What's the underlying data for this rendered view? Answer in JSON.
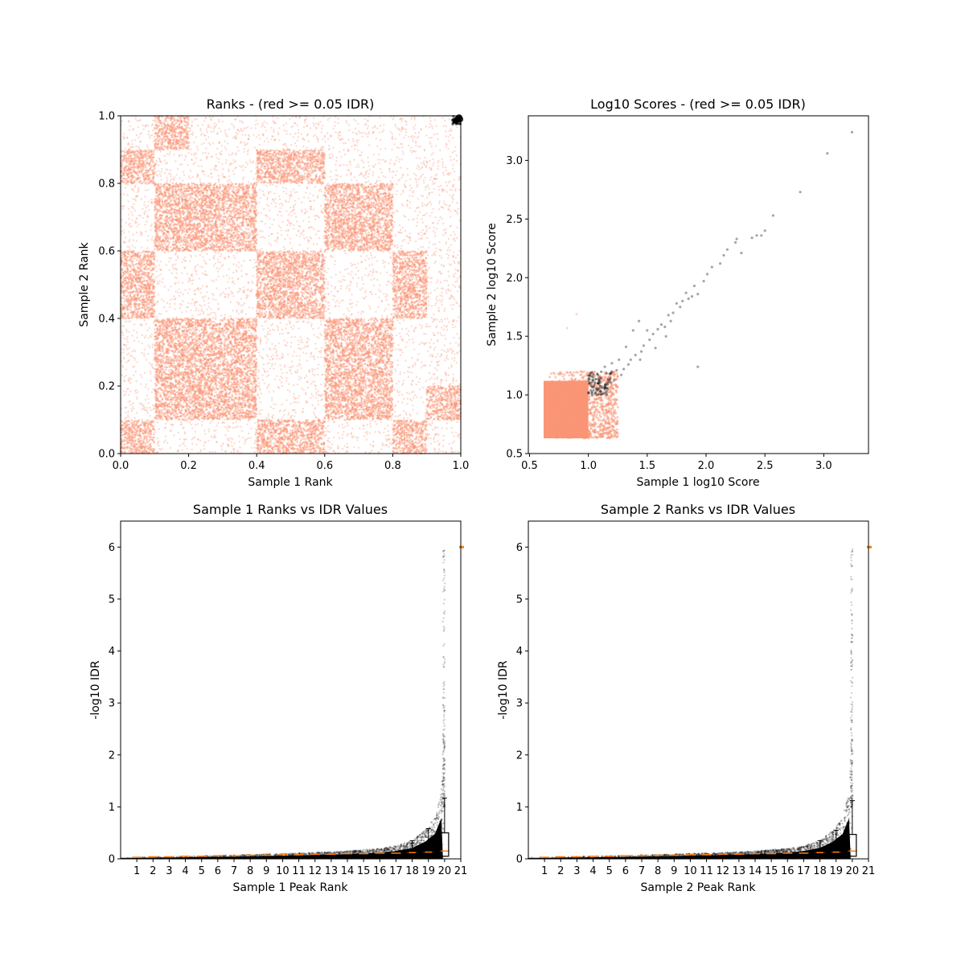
{
  "colors": {
    "red_points": "#fa9575",
    "black_points": "#000000",
    "median_line": "#ff7f0e",
    "axes": "#000000",
    "background": "#ffffff"
  },
  "chart_data": [
    {
      "id": "ranks",
      "type": "scatter",
      "title": "Ranks - (red >= 0.05 IDR)",
      "xlabel": "Sample 1 Rank",
      "ylabel": "Sample 2 Rank",
      "xlim": [
        0,
        1
      ],
      "ylim": [
        0,
        1
      ],
      "xticks": [
        "0.0",
        "0.2",
        "0.4",
        "0.6",
        "0.8",
        "1.0"
      ],
      "yticks": [
        "0.0",
        "0.2",
        "0.4",
        "0.6",
        "0.8",
        "1.0"
      ],
      "block_edges": [
        0,
        0.1,
        0.2,
        0.3,
        0.4,
        0.5,
        0.6,
        0.7,
        0.8,
        0.9,
        0.95,
        1.0
      ],
      "dense_blocks": [
        {
          "x": [
            0.0,
            0.1
          ],
          "y": [
            0.0,
            0.1
          ]
        },
        {
          "x": [
            0.1,
            0.4
          ],
          "y": [
            0.1,
            0.4
          ]
        },
        {
          "x": [
            0.4,
            0.6
          ],
          "y": [
            0.4,
            0.6
          ]
        },
        {
          "x": [
            0.0,
            0.1
          ],
          "y": [
            0.4,
            0.6
          ]
        },
        {
          "x": [
            0.4,
            0.6
          ],
          "y": [
            0.0,
            0.1
          ]
        },
        {
          "x": [
            0.6,
            0.8
          ],
          "y": [
            0.6,
            0.8
          ]
        },
        {
          "x": [
            0.1,
            0.4
          ],
          "y": [
            0.6,
            0.8
          ]
        },
        {
          "x": [
            0.6,
            0.8
          ],
          "y": [
            0.1,
            0.4
          ]
        },
        {
          "x": [
            0.8,
            0.9
          ],
          "y": [
            0.4,
            0.6
          ]
        },
        {
          "x": [
            0.4,
            0.6
          ],
          "y": [
            0.8,
            0.9
          ]
        },
        {
          "x": [
            0.0,
            0.1
          ],
          "y": [
            0.8,
            0.9
          ]
        },
        {
          "x": [
            0.8,
            0.9
          ],
          "y": [
            0.0,
            0.1
          ]
        },
        {
          "x": [
            0.1,
            0.2
          ],
          "y": [
            0.9,
            1.0
          ]
        },
        {
          "x": [
            0.9,
            1.0
          ],
          "y": [
            0.1,
            0.2
          ]
        }
      ],
      "series": [
        {
          "name": "red >= 0.05 IDR",
          "color": "#fa9575",
          "density": "uniform with block structure"
        },
        {
          "name": "below 0.05 IDR",
          "color": "#000000",
          "points": [
            [
              0.985,
              0.985
            ],
            [
              0.99,
              0.99
            ],
            [
              0.995,
              0.995
            ],
            [
              0.998,
              0.99
            ]
          ]
        }
      ]
    },
    {
      "id": "log10scores",
      "type": "scatter",
      "title": "Log10 Scores - (red >= 0.05 IDR)",
      "xlabel": "Sample 1 log10 Score",
      "ylabel": "Sample 2 log10 Score",
      "xlim": [
        0.49,
        3.38
      ],
      "ylim": [
        0.5,
        3.38
      ],
      "xticks": [
        "0.5",
        "1.0",
        "1.5",
        "2.0",
        "2.5",
        "3.0"
      ],
      "yticks": [
        "0.5",
        "1.0",
        "1.5",
        "2.0",
        "2.5",
        "3.0"
      ],
      "red_cluster": {
        "x": [
          0.62,
          1.25
        ],
        "y": [
          0.63,
          1.2
        ]
      },
      "black_points": [
        [
          3.24,
          3.24
        ],
        [
          3.03,
          3.06
        ],
        [
          2.8,
          2.73
        ],
        [
          2.57,
          2.53
        ],
        [
          2.5,
          2.4
        ],
        [
          2.47,
          2.36
        ],
        [
          2.43,
          2.36
        ],
        [
          2.39,
          2.34
        ],
        [
          2.26,
          2.33
        ],
        [
          2.25,
          2.3
        ],
        [
          2.3,
          2.21
        ],
        [
          2.18,
          2.24
        ],
        [
          2.15,
          2.19
        ],
        [
          2.12,
          2.12
        ],
        [
          2.05,
          2.09
        ],
        [
          2.01,
          2.03
        ],
        [
          1.98,
          1.97
        ],
        [
          1.93,
          1.86
        ],
        [
          1.9,
          1.93
        ],
        [
          1.88,
          1.84
        ],
        [
          1.85,
          1.82
        ],
        [
          1.83,
          1.87
        ],
        [
          1.8,
          1.8
        ],
        [
          1.78,
          1.75
        ],
        [
          1.75,
          1.78
        ],
        [
          1.72,
          1.7
        ],
        [
          1.7,
          1.63
        ],
        [
          1.68,
          1.68
        ],
        [
          1.65,
          1.58
        ],
        [
          1.62,
          1.6
        ],
        [
          1.59,
          1.56
        ],
        [
          1.55,
          1.52
        ],
        [
          1.52,
          1.47
        ],
        [
          1.5,
          1.55
        ],
        [
          1.47,
          1.42
        ],
        [
          1.45,
          1.37
        ],
        [
          1.43,
          1.63
        ],
        [
          1.4,
          1.34
        ],
        [
          1.38,
          1.55
        ],
        [
          1.36,
          1.3
        ],
        [
          1.34,
          1.26
        ],
        [
          1.32,
          1.41
        ],
        [
          1.3,
          1.22
        ],
        [
          1.28,
          1.17
        ],
        [
          1.26,
          1.3
        ],
        [
          1.24,
          1.21
        ],
        [
          1.22,
          1.13
        ],
        [
          1.2,
          1.27
        ],
        [
          1.18,
          1.18
        ],
        [
          1.16,
          1.1
        ],
        [
          1.14,
          1.24
        ],
        [
          1.12,
          1.07
        ],
        [
          1.1,
          1.15
        ],
        [
          1.08,
          1.05
        ],
        [
          1.06,
          1.02
        ],
        [
          1.05,
          1.08
        ],
        [
          1.04,
          1.12
        ],
        [
          1.03,
          1.0
        ],
        [
          1.02,
          1.04
        ],
        [
          1.01,
          1.1
        ],
        [
          1.0,
          1.02
        ],
        [
          1.93,
          1.24
        ],
        [
          1.44,
          1.3
        ],
        [
          1.57,
          1.4
        ],
        [
          1.66,
          1.5
        ]
      ],
      "faint_outliers": [
        [
          0.9,
          1.69
        ],
        [
          0.82,
          1.57
        ]
      ]
    },
    {
      "id": "s1ranks_idr",
      "type": "box",
      "title": "Sample 1 Ranks vs IDR Values",
      "xlabel": "Sample 1 Peak Rank",
      "ylabel": "-log10 IDR",
      "ylim": [
        0,
        6.5
      ],
      "yticks": [
        "0",
        "1",
        "2",
        "3",
        "4",
        "5",
        "6"
      ],
      "xticks": [
        "1",
        "2",
        "3",
        "4",
        "5",
        "6",
        "7",
        "8",
        "9",
        "10",
        "11",
        "12",
        "13",
        "14",
        "15",
        "16",
        "17",
        "18",
        "19",
        "20",
        "21"
      ],
      "xlim": [
        0,
        21
      ],
      "curve": [
        [
          0.0,
          0.03
        ],
        [
          4.0,
          0.05
        ],
        [
          8.0,
          0.08
        ],
        [
          10.0,
          0.1
        ],
        [
          12.0,
          0.12
        ],
        [
          14.0,
          0.15
        ],
        [
          16.0,
          0.2
        ],
        [
          17.0,
          0.25
        ],
        [
          18.0,
          0.35
        ],
        [
          18.8,
          0.55
        ],
        [
          19.4,
          0.8
        ],
        [
          19.8,
          1.3
        ],
        [
          20.0,
          3.0
        ],
        [
          20.02,
          6.0
        ]
      ],
      "medians": [
        0.03,
        0.04,
        0.04,
        0.05,
        0.05,
        0.06,
        0.06,
        0.07,
        0.07,
        0.08,
        0.08,
        0.09,
        0.09,
        0.1,
        0.1,
        0.11,
        0.11,
        0.12,
        0.13,
        0.15
      ],
      "last_box": {
        "q1": 0.05,
        "q3": 0.5,
        "whisker_high": 1.17
      },
      "box19": {
        "q1": 0.04,
        "q3": 0.2,
        "whisker_high": 0.58
      },
      "box18": {
        "q1": 0.03,
        "q3": 0.15,
        "whisker_high": 0.35
      }
    },
    {
      "id": "s2ranks_idr",
      "type": "box",
      "title": "Sample 2 Ranks vs IDR Values",
      "xlabel": "Sample 2 Peak Rank",
      "ylabel": "-log10 IDR",
      "ylim": [
        0,
        6.5
      ],
      "yticks": [
        "0",
        "1",
        "2",
        "3",
        "4",
        "5",
        "6"
      ],
      "xticks": [
        "1",
        "2",
        "3",
        "4",
        "5",
        "6",
        "7",
        "8",
        "9",
        "10",
        "11",
        "12",
        "13",
        "14",
        "15",
        "16",
        "17",
        "18",
        "19",
        "20",
        "21"
      ],
      "xlim": [
        0,
        21
      ],
      "curve": [
        [
          0.0,
          0.03
        ],
        [
          4.0,
          0.05
        ],
        [
          8.0,
          0.08
        ],
        [
          10.0,
          0.1
        ],
        [
          12.0,
          0.12
        ],
        [
          14.0,
          0.15
        ],
        [
          16.0,
          0.2
        ],
        [
          17.0,
          0.25
        ],
        [
          18.0,
          0.35
        ],
        [
          18.8,
          0.55
        ],
        [
          19.4,
          0.8
        ],
        [
          19.8,
          1.3
        ],
        [
          20.0,
          3.0
        ],
        [
          20.02,
          6.0
        ]
      ],
      "medians": [
        0.03,
        0.04,
        0.04,
        0.05,
        0.05,
        0.06,
        0.06,
        0.07,
        0.07,
        0.08,
        0.08,
        0.09,
        0.09,
        0.1,
        0.1,
        0.11,
        0.11,
        0.12,
        0.13,
        0.15
      ],
      "last_box": {
        "q1": 0.05,
        "q3": 0.47,
        "whisker_high": 1.12
      },
      "box19": {
        "q1": 0.04,
        "q3": 0.2,
        "whisker_high": 0.55
      },
      "box18": {
        "q1": 0.03,
        "q3": 0.15,
        "whisker_high": 0.35
      }
    }
  ]
}
